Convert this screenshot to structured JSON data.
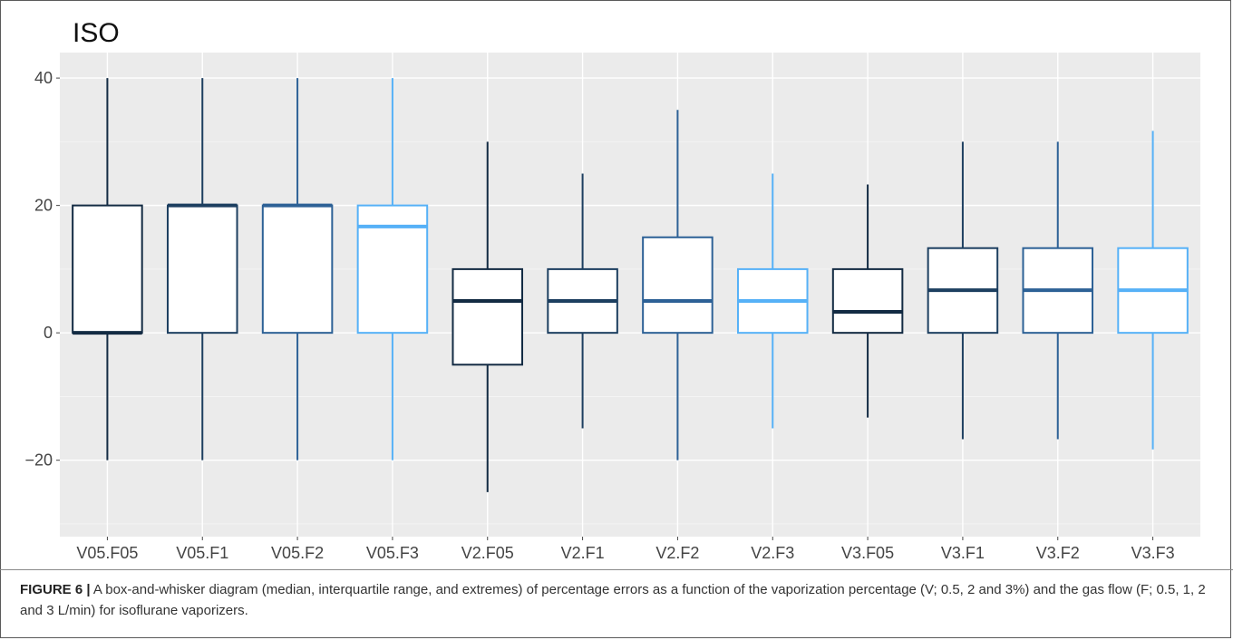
{
  "figure": {
    "label": "FIGURE 6 |",
    "caption": "A box-and-whisker diagram (median, interquartile range, and extremes) of percentage errors as a function of the vaporization percentage (V; 0.5, 2 and 3%) and the gas flow (F; 0.5, 1, 2 and 3 L/min) for isoflurane vaporizers."
  },
  "chart_data": {
    "type": "boxplot",
    "title": "ISO",
    "xlabel": "",
    "ylabel": "",
    "ylim": [
      -32,
      44
    ],
    "yticks": [
      -20,
      0,
      20,
      40
    ],
    "ytick_labels": [
      "−20",
      "0",
      "20",
      "40"
    ],
    "grid": true,
    "legend": "none",
    "background": "#ebebeb",
    "categories": [
      "V05.F05",
      "V05.F1",
      "V05.F2",
      "V05.F3",
      "V2.F05",
      "V2.F1",
      "V2.F2",
      "V2.F3",
      "V3.F05",
      "V3.F1",
      "V3.F2",
      "V3.F3"
    ],
    "palette": [
      "#132b43",
      "#1d3f60",
      "#2d6196",
      "#56b1f7"
    ],
    "boxes": [
      {
        "category": "V05.F05",
        "min": -20,
        "q1": 0,
        "median": 0,
        "q3": 20,
        "max": 40,
        "color": "#132b43"
      },
      {
        "category": "V05.F1",
        "min": -20,
        "q1": 0,
        "median": 20,
        "q3": 20,
        "max": 40,
        "color": "#1d3f60"
      },
      {
        "category": "V05.F2",
        "min": -20,
        "q1": 0,
        "median": 20,
        "q3": 20,
        "max": 40,
        "color": "#2d6196"
      },
      {
        "category": "V05.F3",
        "min": -20,
        "q1": 0,
        "median": 16.7,
        "q3": 20,
        "max": 40,
        "color": "#56b1f7"
      },
      {
        "category": "V2.F05",
        "min": -25,
        "q1": -5,
        "median": 5,
        "q3": 10,
        "max": 30,
        "color": "#132b43"
      },
      {
        "category": "V2.F1",
        "min": -15,
        "q1": 0,
        "median": 5,
        "q3": 10,
        "max": 25,
        "color": "#1d3f60"
      },
      {
        "category": "V2.F2",
        "min": -20,
        "q1": 0,
        "median": 5,
        "q3": 15,
        "max": 35,
        "color": "#2d6196"
      },
      {
        "category": "V2.F3",
        "min": -15,
        "q1": 0,
        "median": 5,
        "q3": 10,
        "max": 25,
        "color": "#56b1f7"
      },
      {
        "category": "V3.F05",
        "min": -13.3,
        "q1": 0,
        "median": 3.3,
        "q3": 10,
        "max": 23.3,
        "color": "#132b43"
      },
      {
        "category": "V3.F1",
        "min": -16.7,
        "q1": 0,
        "median": 6.7,
        "q3": 13.3,
        "max": 30,
        "color": "#1d3f60"
      },
      {
        "category": "V3.F2",
        "min": -16.7,
        "q1": 0,
        "median": 6.7,
        "q3": 13.3,
        "max": 30,
        "color": "#2d6196"
      },
      {
        "category": "V3.F3",
        "min": -18.3,
        "q1": 0,
        "median": 6.7,
        "q3": 13.3,
        "max": 31.7,
        "color": "#56b1f7"
      }
    ]
  }
}
